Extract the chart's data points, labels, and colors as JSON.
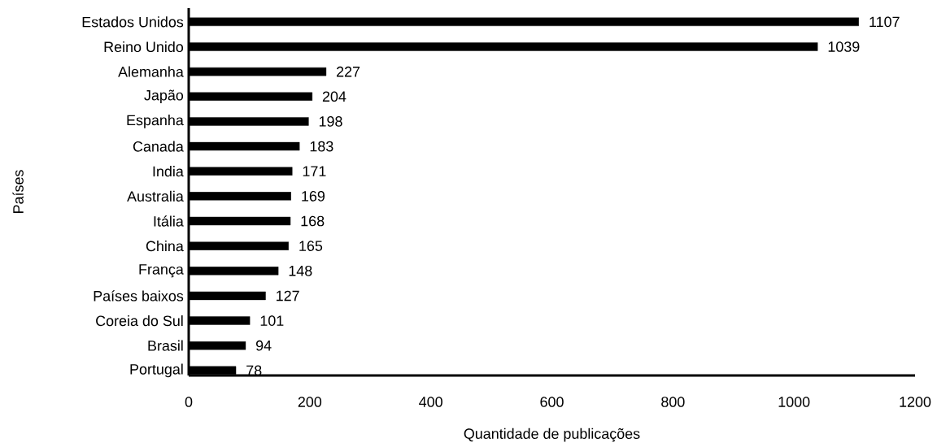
{
  "chart_data": {
    "type": "bar",
    "orientation": "horizontal",
    "xlabel": "Quantidade de publicações",
    "ylabel": "Países",
    "categories": [
      "Estados Unidos",
      "Reino Unido",
      "Alemanha",
      "Japão",
      "Espanha",
      "Canada",
      "India",
      "Australia",
      "Itália",
      "China",
      "França",
      "Países baixos",
      "Coreia do Sul",
      "Brasil",
      "Portugal"
    ],
    "values": [
      1107,
      1039,
      227,
      204,
      198,
      183,
      171,
      169,
      168,
      165,
      148,
      127,
      101,
      94,
      78
    ],
    "color": "#000000",
    "data_labels": true,
    "grid": false,
    "xlim": [
      0,
      1200
    ],
    "xticks": [
      0,
      200,
      400,
      600,
      800,
      1000,
      1200
    ]
  }
}
